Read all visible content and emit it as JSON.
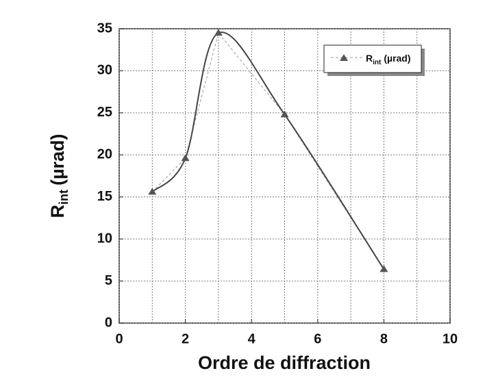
{
  "chart_data": {
    "type": "line",
    "xlabel": "Ordre de diffraction",
    "ylabel": {
      "main": "R",
      "sub": "int",
      "unit": "(µrad)"
    },
    "x": [
      1,
      2,
      3,
      5,
      8
    ],
    "series": [
      {
        "name": {
          "main": "R",
          "sub": "int",
          "unit": "(µrad)"
        },
        "color": "#555555",
        "values": [
          15.6,
          19.6,
          34.5,
          24.8,
          6.4
        ]
      }
    ],
    "xlim": [
      0,
      10
    ],
    "xticks": [
      0,
      2,
      4,
      6,
      8,
      10
    ],
    "xminor": [
      1,
      3,
      5,
      7,
      9
    ],
    "ylim": [
      0,
      35
    ],
    "yticks": [
      0,
      5,
      10,
      15,
      20,
      25,
      30,
      35
    ],
    "grid": true,
    "legend": "upper right",
    "smooth": true
  }
}
